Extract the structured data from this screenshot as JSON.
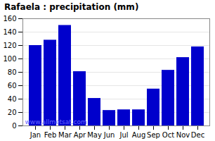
{
  "chart_data": {
    "type": "bar",
    "title": "Rafaela : precipitation (mm)",
    "categories": [
      "Jan",
      "Feb",
      "Mar",
      "Apr",
      "May",
      "Jun",
      "Jul",
      "Aug",
      "Sep",
      "Oct",
      "Nov",
      "Dec"
    ],
    "values": [
      120,
      128,
      150,
      81,
      41,
      23,
      24,
      24,
      55,
      83,
      102,
      118
    ],
    "color": "#0000cc",
    "ylim": [
      0,
      160
    ],
    "yticks": [
      0,
      20,
      40,
      60,
      80,
      100,
      120,
      140,
      160
    ],
    "grid": true,
    "annotation": "www.allmetsat.com"
  }
}
